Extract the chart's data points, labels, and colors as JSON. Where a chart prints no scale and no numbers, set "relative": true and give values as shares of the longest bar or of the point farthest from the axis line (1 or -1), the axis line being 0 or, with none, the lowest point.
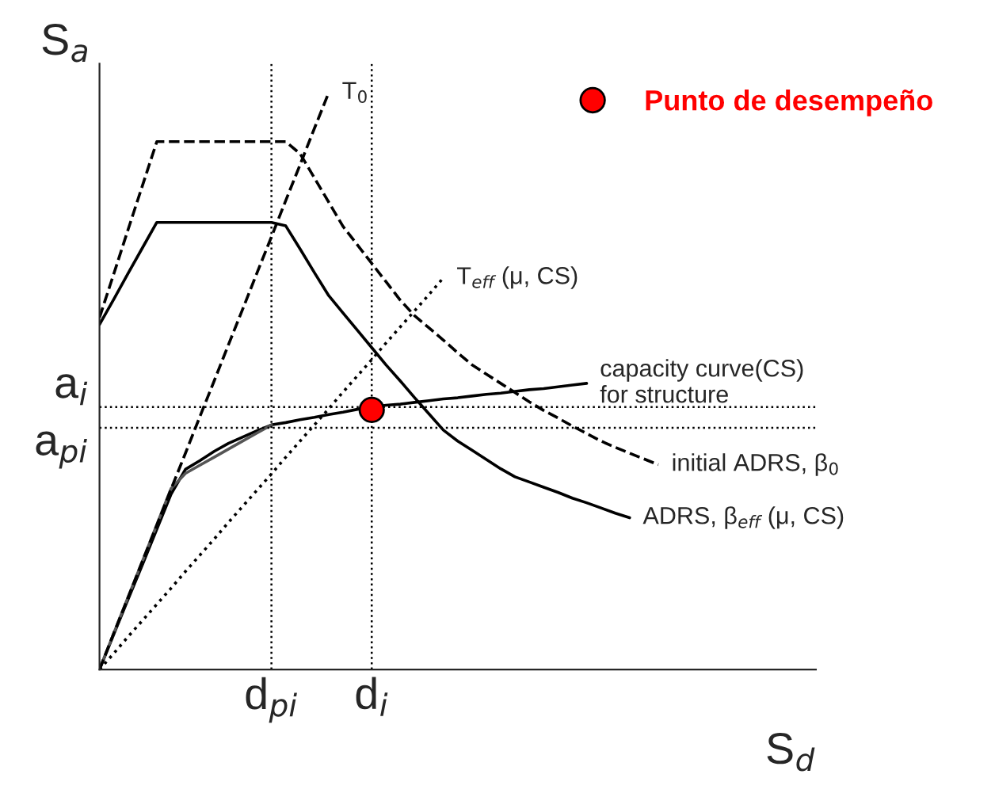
{
  "chart_data": {
    "type": "line",
    "relative": true,
    "xlabel": "S$_{d}$",
    "ylabel": "S$_{a}$",
    "legend": "top right",
    "categories": [
      null,
      null,
      null,
      null,
      null,
      null,
      null,
      null,
      null,
      null,
      null,
      null,
      "d$_{pi}$",
      null,
      null,
      null,
      null,
      null,
      null,
      "d$_{i}$",
      null,
      null,
      null,
      null,
      null,
      null,
      null,
      null,
      null,
      null,
      null,
      null,
      null,
      null,
      null,
      null,
      null,
      null,
      null,
      null,
      null,
      null,
      null,
      null,
      null,
      null,
      null,
      null,
      null,
      null,
      null
    ],
    "series": [
      {
        "name": "initial ADRS, β$_{0}$",
        "color": "#000000",
        "line_style": "dashed",
        "values": [
          0.61,
          0.686,
          0.763,
          0.839,
          0.915,
          0.915,
          0.915,
          0.915,
          0.915,
          0.915,
          0.915,
          0.915,
          0.915,
          0.915,
          0.894,
          0.852,
          0.81,
          0.768,
          0.736,
          0.704,
          0.672,
          0.64,
          0.613,
          0.592,
          0.571,
          0.549,
          0.528,
          0.512,
          0.496,
          0.48,
          0.464,
          0.449,
          0.436,
          0.422,
          0.409,
          0.396,
          0.385,
          0.375,
          0.365,
          0.355,
          null,
          null,
          null,
          null,
          null,
          null,
          null,
          null,
          null,
          null,
          null
        ]
      },
      {
        "name": "ADRS, β$_{eff}$ (μ, CS)",
        "color": "#000000",
        "line_style": "solid",
        "values": [
          0.598,
          0.642,
          0.687,
          0.731,
          0.775,
          0.775,
          0.775,
          0.775,
          0.775,
          0.775,
          0.775,
          0.775,
          0.775,
          0.769,
          0.729,
          0.688,
          0.648,
          0.618,
          0.588,
          0.558,
          0.528,
          0.5,
          0.471,
          0.443,
          0.415,
          0.396,
          0.38,
          0.364,
          0.348,
          0.334,
          0.325,
          0.316,
          0.307,
          0.297,
          0.289,
          0.28,
          0.271,
          0.263,
          null,
          null,
          null,
          null,
          null,
          null,
          null,
          null,
          null,
          null,
          null,
          null,
          null
        ]
      },
      {
        "name": "capacity curve(CS)\nfor structure",
        "color": "#000000",
        "line_style": "solid",
        "values": [
          0,
          0.061,
          0.122,
          0.182,
          0.243,
          0.304,
          0.347,
          0.362,
          0.378,
          0.392,
          0.403,
          0.414,
          0.424,
          0.428,
          0.433,
          0.437,
          0.442,
          0.446,
          0.451,
          0.455,
          0.458,
          0.46,
          0.463,
          0.466,
          0.469,
          0.471,
          0.474,
          0.477,
          0.479,
          0.482,
          0.485,
          0.487,
          0.49,
          0.493,
          0.496,
          null,
          null,
          null,
          null,
          null,
          null,
          null,
          null,
          null,
          null,
          null,
          null,
          null,
          null,
          null,
          null
        ]
      },
      {
        "color": "#555555",
        "line_style": "solid",
        "values": [
          0,
          0.063,
          0.126,
          0.188,
          0.251,
          0.314,
          0.34,
          0.354,
          0.368,
          0.382,
          0.396,
          0.41,
          0.424,
          null,
          null,
          null,
          null,
          null,
          null,
          null,
          null,
          null,
          null,
          null,
          null,
          null,
          null,
          null,
          null,
          null,
          null,
          null,
          null,
          null,
          null,
          null,
          null,
          null,
          null,
          null,
          null,
          null,
          null,
          null,
          null,
          null,
          null,
          null,
          null,
          null,
          null
        ]
      },
      {
        "name": "T$_{0}$",
        "color": "#000000",
        "line_style": "dashed",
        "values": [
          0,
          0.063,
          0.125,
          0.188,
          0.25,
          0.313,
          0.375,
          0.438,
          0.5,
          0.563,
          0.625,
          0.688,
          0.75,
          0.813,
          0.875,
          0.938,
          1.0,
          null,
          null,
          null,
          null,
          null,
          null,
          null,
          null,
          null,
          null,
          null,
          null,
          null,
          null,
          null,
          null,
          null,
          null,
          null,
          null,
          null,
          null,
          null,
          null,
          null,
          null,
          null,
          null,
          null,
          null,
          null,
          null,
          null,
          null
        ]
      },
      {
        "name": "T$_{eff}$ (μ, CS)",
        "color": "#000000",
        "line_style": "dotted",
        "values": [
          0,
          0.028,
          0.057,
          0.085,
          0.113,
          0.141,
          0.17,
          0.198,
          0.226,
          0.255,
          0.283,
          0.311,
          0.339,
          0.368,
          0.396,
          0.424,
          0.452,
          0.481,
          0.509,
          0.537,
          0.566,
          0.594,
          0.622,
          0.65,
          0.679,
          null,
          null,
          null,
          null,
          null,
          null,
          null,
          null,
          null,
          null,
          null,
          null,
          null,
          null,
          null,
          null,
          null,
          null,
          null,
          null,
          null,
          null,
          null,
          null,
          null,
          null
        ]
      },
      {
        "type": "scatter",
        "name": "Punto de desempeño",
        "color": "#ff0000",
        "marker": "circle",
        "values": [
          null,
          null,
          null,
          null,
          null,
          null,
          null,
          null,
          null,
          null,
          null,
          null,
          null,
          null,
          null,
          null,
          null,
          null,
          null,
          0.45,
          null,
          null,
          null,
          null,
          null,
          null,
          null,
          null,
          null,
          null,
          null,
          null,
          null,
          null,
          null,
          null,
          null,
          null,
          null,
          null,
          null,
          null,
          null,
          null,
          null,
          null,
          null,
          null,
          null,
          null,
          null
        ]
      }
    ],
    "ref_lines": [
      {
        "axis": "y",
        "value": 0.455,
        "label": "a$_{i}$",
        "line_style": "dotted"
      },
      {
        "axis": "y",
        "value": 0.419,
        "label": "a$_{pi}$",
        "line_style": "dotted"
      },
      {
        "axis": "x",
        "value": "d$_{pi}$",
        "line_style": "dotted"
      },
      {
        "axis": "x",
        "value": "d$_{i}$",
        "line_style": "dotted"
      }
    ]
  }
}
